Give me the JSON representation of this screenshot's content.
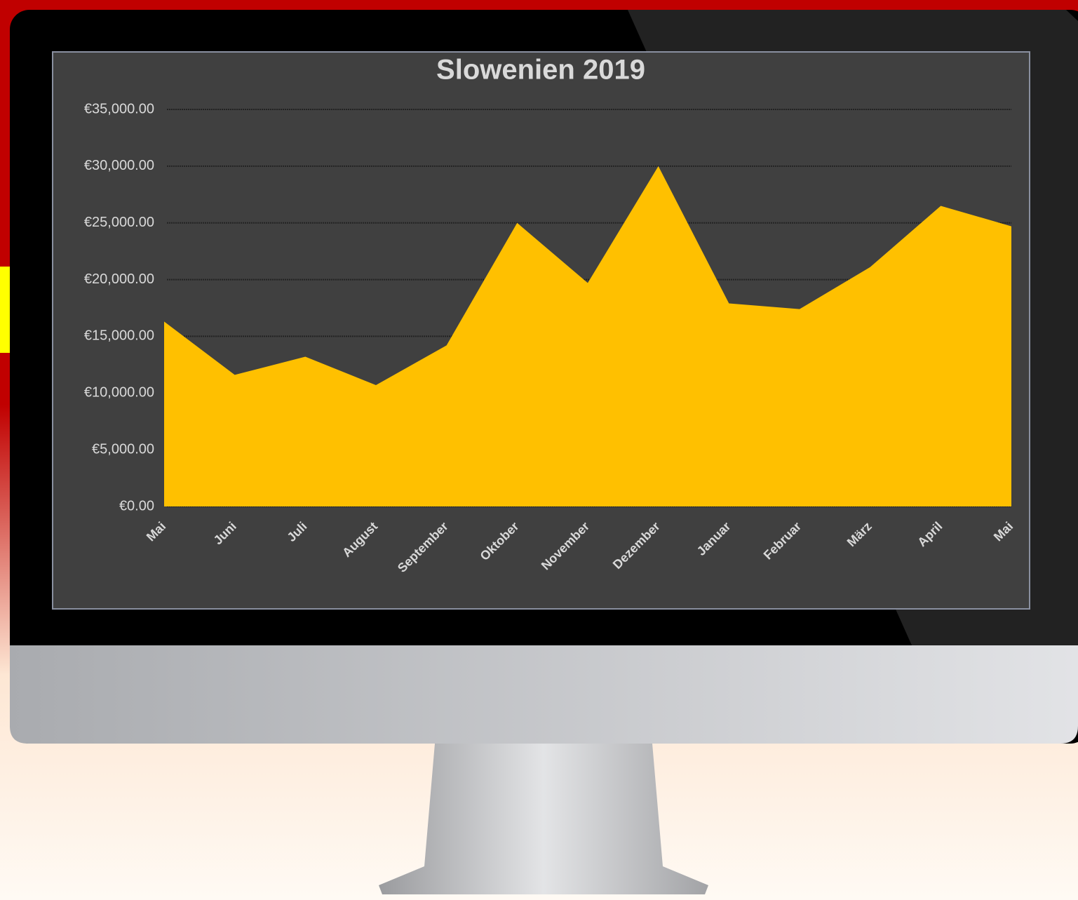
{
  "chart_data": {
    "type": "area",
    "title": "Slowenien 2019",
    "categories": [
      "Mai",
      "Juni",
      "Juli",
      "August",
      "September",
      "Oktober",
      "November",
      "Dezember",
      "Januar",
      "Februar",
      "März",
      "April",
      "Mai"
    ],
    "values": [
      16300,
      11600,
      13200,
      10700,
      14200,
      25000,
      19700,
      30000,
      17900,
      17400,
      21100,
      26500,
      24700
    ],
    "color": "#ffc000",
    "ylim": [
      0,
      35000
    ],
    "yticks": [
      {
        "value": 0,
        "label": "€0.00"
      },
      {
        "value": 5000,
        "label": "€5,000.00"
      },
      {
        "value": 10000,
        "label": "€10,000.00"
      },
      {
        "value": 15000,
        "label": "€15,000.00"
      },
      {
        "value": 20000,
        "label": "€20,000.00"
      },
      {
        "value": 25000,
        "label": "€25,000.00"
      },
      {
        "value": 30000,
        "label": "€30,000.00"
      },
      {
        "value": 35000,
        "label": "€35,000.00"
      }
    ],
    "grid": true
  }
}
